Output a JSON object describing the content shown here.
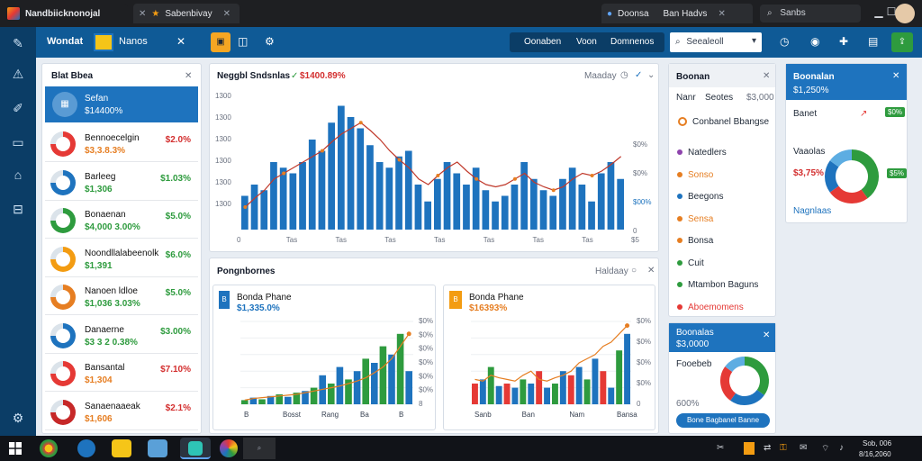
{
  "browser": {
    "tab1": "Nandbiicknonojal",
    "tab2": "Sabenbivay",
    "tab3": "Doonsa",
    "tab4": "Ban Hadvs",
    "search": "Sanbs"
  },
  "appbar": {
    "title": "Wondat",
    "logo_text": "Nanos",
    "btn1": "Oonaben",
    "btn2": "Voon",
    "btn3": "Domnenos",
    "search_placeholder": "Seealeoll"
  },
  "left_panel": {
    "title": "Blat Bbea",
    "selected": {
      "name": "Sefan",
      "value": "$14400%"
    },
    "items": [
      {
        "name": "Bennoecelgin",
        "value": "$3,3.8.3%",
        "pct": "$2.0%",
        "pct_color": "red",
        "color": "#e53935"
      },
      {
        "name": "Barleeg",
        "value": "$1,306",
        "pct": "$1.03%",
        "pct_color": "green",
        "color": "#1e73be"
      },
      {
        "name": "Bonaenan",
        "value": "$4,000 3.00%",
        "pct": "$5.0%",
        "pct_color": "green",
        "color": "#2e9b3e"
      },
      {
        "name": "Noondllalabeenolk",
        "value": "$1,391",
        "pct": "$6.0%",
        "pct_color": "green",
        "color": "#f39c12"
      },
      {
        "name": "Nanoen ldloe",
        "value": "$1,036 3.03%",
        "pct": "$5.0%",
        "pct_color": "green",
        "color": "#e67e22"
      },
      {
        "name": "Danaerne",
        "value": "$3 3 2 0.38%",
        "pct": "$3.00%",
        "pct_color": "green",
        "color": "#1e73be"
      },
      {
        "name": "Bansantal",
        "value": "$1,304",
        "pct": "$7.10%",
        "pct_color": "red",
        "color": "#e53935"
      },
      {
        "name": "Sanaenaaeak",
        "value": "$1,606",
        "pct": "$2.1%",
        "pct_color": "red",
        "color": "#c62828"
      }
    ]
  },
  "main_chart_panel": {
    "title": "Neggbl Sndsnlas",
    "delta": "$1400.89%",
    "filter": "Maaday",
    "right_axis_label": "$00%"
  },
  "bottom_panel": {
    "title": "Pongnbornes",
    "filter": "Haldaay"
  },
  "small_chart_1": {
    "title": "Bonda Phane",
    "value": "$1,335.0%",
    "right_top": "$0%"
  },
  "small_chart_2": {
    "title": "Bonda Phane",
    "value": "$16393%",
    "right_top": "$0%"
  },
  "right_list": {
    "title": "Boonan",
    "col1": "Nanr",
    "col2": "Seotes",
    "col3": "$3,000",
    "feature": "Conbanel Bbangse",
    "items": [
      {
        "label": "Natedlers",
        "color": "#8e44ad",
        "text_color": "#1f2937"
      },
      {
        "label": "Sonso",
        "color": "#e67e22",
        "text_color": "#e67e22"
      },
      {
        "label": "Beegons",
        "color": "#1e73be",
        "text_color": "#1f2937"
      },
      {
        "label": "Sensa",
        "color": "#e67e22",
        "text_color": "#e67e22"
      },
      {
        "label": "Bonsa",
        "color": "#e67e22",
        "text_color": "#1f2937"
      },
      {
        "label": "Cuit",
        "color": "#2e9b3e",
        "text_color": "#1f2937"
      },
      {
        "label": "Mtambon Baguns",
        "color": "#2e9b3e",
        "text_color": "#1f2937"
      },
      {
        "label": "Aboemomens",
        "color": "#e53935",
        "text_color": "#e53935"
      }
    ]
  },
  "right_small": {
    "title": "Boonalas",
    "value": "$3,0000",
    "label": "Fooebeb",
    "pct": "600%",
    "button": "Bone Bagbanel Banne"
  },
  "far_right": {
    "title": "Boonalan",
    "value": "$1,250%",
    "row1_label": "Banet",
    "row1_badge": "$0%",
    "section": "Vaaolas",
    "value2": "$3,75%",
    "badge2": "$5%",
    "link": "Nagnlaas"
  },
  "chart_data": [
    {
      "type": "bar",
      "name": "main-chart",
      "y_ticks": [
        "1300",
        "1300",
        "1300",
        "1300",
        "1300",
        "1300"
      ],
      "right_ticks": [
        "$0%",
        "$0%",
        "$00%",
        "0"
      ],
      "x_labels": [
        "0",
        "Tas",
        "Tas",
        "Tas",
        "Tas",
        "Tas",
        "Tas",
        "Tas",
        "$5"
      ],
      "values": [
        30,
        40,
        35,
        60,
        55,
        50,
        60,
        80,
        70,
        95,
        110,
        100,
        90,
        75,
        60,
        55,
        65,
        70,
        40,
        25,
        45,
        60,
        50,
        40,
        55,
        35,
        25,
        30,
        40,
        60,
        45,
        35,
        30,
        45,
        55,
        40,
        25,
        50,
        60,
        45
      ],
      "line": [
        20,
        28,
        35,
        45,
        50,
        55,
        60,
        65,
        70,
        78,
        85,
        90,
        95,
        88,
        80,
        70,
        62,
        55,
        45,
        40,
        48,
        55,
        60,
        52,
        45,
        40,
        38,
        40,
        45,
        50,
        42,
        38,
        35,
        38,
        45,
        50,
        48,
        52,
        58,
        65
      ]
    },
    {
      "type": "bar",
      "name": "small-chart-1",
      "x_labels": [
        "B",
        "Bosst",
        "Rang",
        "Ba",
        "B"
      ],
      "right_ticks": [
        "$0%",
        "$0%",
        "$0%",
        "$0%",
        "$0%",
        "$0%",
        "8"
      ],
      "values": [
        5,
        8,
        6,
        10,
        12,
        9,
        14,
        16,
        20,
        35,
        25,
        45,
        30,
        40,
        55,
        50,
        70,
        60,
        85,
        40
      ],
      "line": [
        5,
        7,
        8,
        9,
        10,
        11,
        12,
        14,
        16,
        18,
        20,
        22,
        25,
        28,
        32,
        38,
        45,
        55,
        70,
        85
      ]
    },
    {
      "type": "bar",
      "name": "small-chart-2",
      "x_labels": [
        "Sanb",
        "Ban",
        "Nam",
        "Bansa"
      ],
      "right_ticks": [
        "$0%",
        "$0%",
        "$0%",
        "$0%",
        "0"
      ],
      "values": [
        25,
        30,
        45,
        22,
        25,
        20,
        30,
        25,
        40,
        20,
        25,
        40,
        35,
        45,
        30,
        55,
        40,
        20,
        65,
        85
      ],
      "line": [
        30,
        28,
        35,
        32,
        30,
        28,
        35,
        40,
        30,
        28,
        32,
        35,
        40,
        50,
        55,
        60,
        70,
        75,
        85,
        95
      ]
    },
    {
      "type": "pie",
      "name": "far-right-donut",
      "values": [
        40,
        25,
        20,
        15
      ]
    },
    {
      "type": "pie",
      "name": "small-donut",
      "values": [
        35,
        25,
        25,
        15
      ]
    }
  ],
  "colors": {
    "blue": "#1e73be",
    "green": "#2e9b3e",
    "red": "#e53935",
    "orange": "#e67e22",
    "appbar": "#0f5a96",
    "sidebar": "#0b3d66"
  },
  "taskbar": {
    "right_text": "Sob, 006",
    "date": "8/16,2060"
  }
}
